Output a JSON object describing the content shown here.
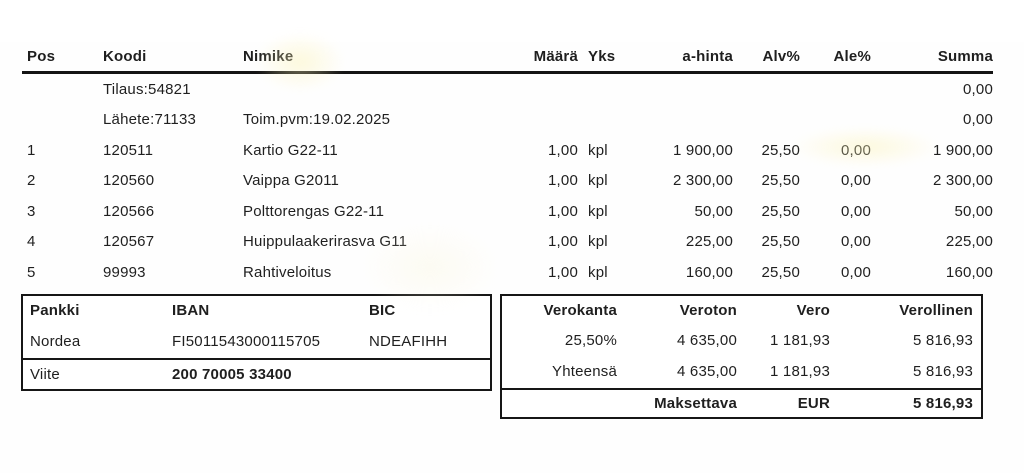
{
  "table": {
    "headers": {
      "pos": "Pos",
      "koodi": "Koodi",
      "nimike": "Nimike",
      "maara": "Määrä",
      "yks": "Yks",
      "ahinta": "a-hinta",
      "alv": "Alv%",
      "ale": "Ale%",
      "summa": "Summa"
    },
    "meta_rows": [
      {
        "koodi": "Tilaus:54821",
        "nimike": "",
        "summa": "0,00"
      },
      {
        "koodi": "Lähete:71133",
        "nimike": "Toim.pvm:19.02.2025",
        "summa": "0,00"
      }
    ],
    "rows": [
      {
        "pos": "1",
        "koodi": "120511",
        "nimike": "Kartio G22-11",
        "maara": "1,00",
        "yks": "kpl",
        "ahinta": "1 900,00",
        "alv": "25,50",
        "ale": "0,00",
        "summa": "1 900,00"
      },
      {
        "pos": "2",
        "koodi": "120560",
        "nimike": "Vaippa G2011",
        "maara": "1,00",
        "yks": "kpl",
        "ahinta": "2 300,00",
        "alv": "25,50",
        "ale": "0,00",
        "summa": "2 300,00"
      },
      {
        "pos": "3",
        "koodi": "120566",
        "nimike": "Polttorengas G22-11",
        "maara": "1,00",
        "yks": "kpl",
        "ahinta": "50,00",
        "alv": "25,50",
        "ale": "0,00",
        "summa": "50,00"
      },
      {
        "pos": "4",
        "koodi": "120567",
        "nimike": "Huippulaakerirasva G11",
        "maara": "1,00",
        "yks": "kpl",
        "ahinta": "225,00",
        "alv": "25,50",
        "ale": "0,00",
        "summa": "225,00"
      },
      {
        "pos": "5",
        "koodi": "99993",
        "nimike": "Rahtiveloitus",
        "maara": "1,00",
        "yks": "kpl",
        "ahinta": "160,00",
        "alv": "25,50",
        "ale": "0,00",
        "summa": "160,00"
      }
    ]
  },
  "bank": {
    "headers": {
      "pankki": "Pankki",
      "iban": "IBAN",
      "bic": "BIC"
    },
    "row": {
      "pankki": "Nordea",
      "iban": "FI5011543000115705",
      "bic": "NDEAFIHH"
    },
    "viite_label": "Viite",
    "viite_value": "200 70005 33400"
  },
  "tax": {
    "headers": {
      "verokanta": "Verokanta",
      "veroton": "Veroton",
      "vero": "Vero",
      "verollinen": "Verollinen"
    },
    "rows": [
      {
        "verokanta": "25,50%",
        "veroton": "4 635,00",
        "vero": "1 181,93",
        "verollinen": "5 816,93"
      },
      {
        "verokanta": "Yhteensä",
        "veroton": "4 635,00",
        "vero": "1 181,93",
        "verollinen": "5 816,93"
      }
    ],
    "total": {
      "label": "Maksettava",
      "currency": "EUR",
      "amount": "5 816,93"
    }
  },
  "colors": {
    "text": "#1f1f1f",
    "border": "#161616",
    "background": "#ffffff"
  }
}
